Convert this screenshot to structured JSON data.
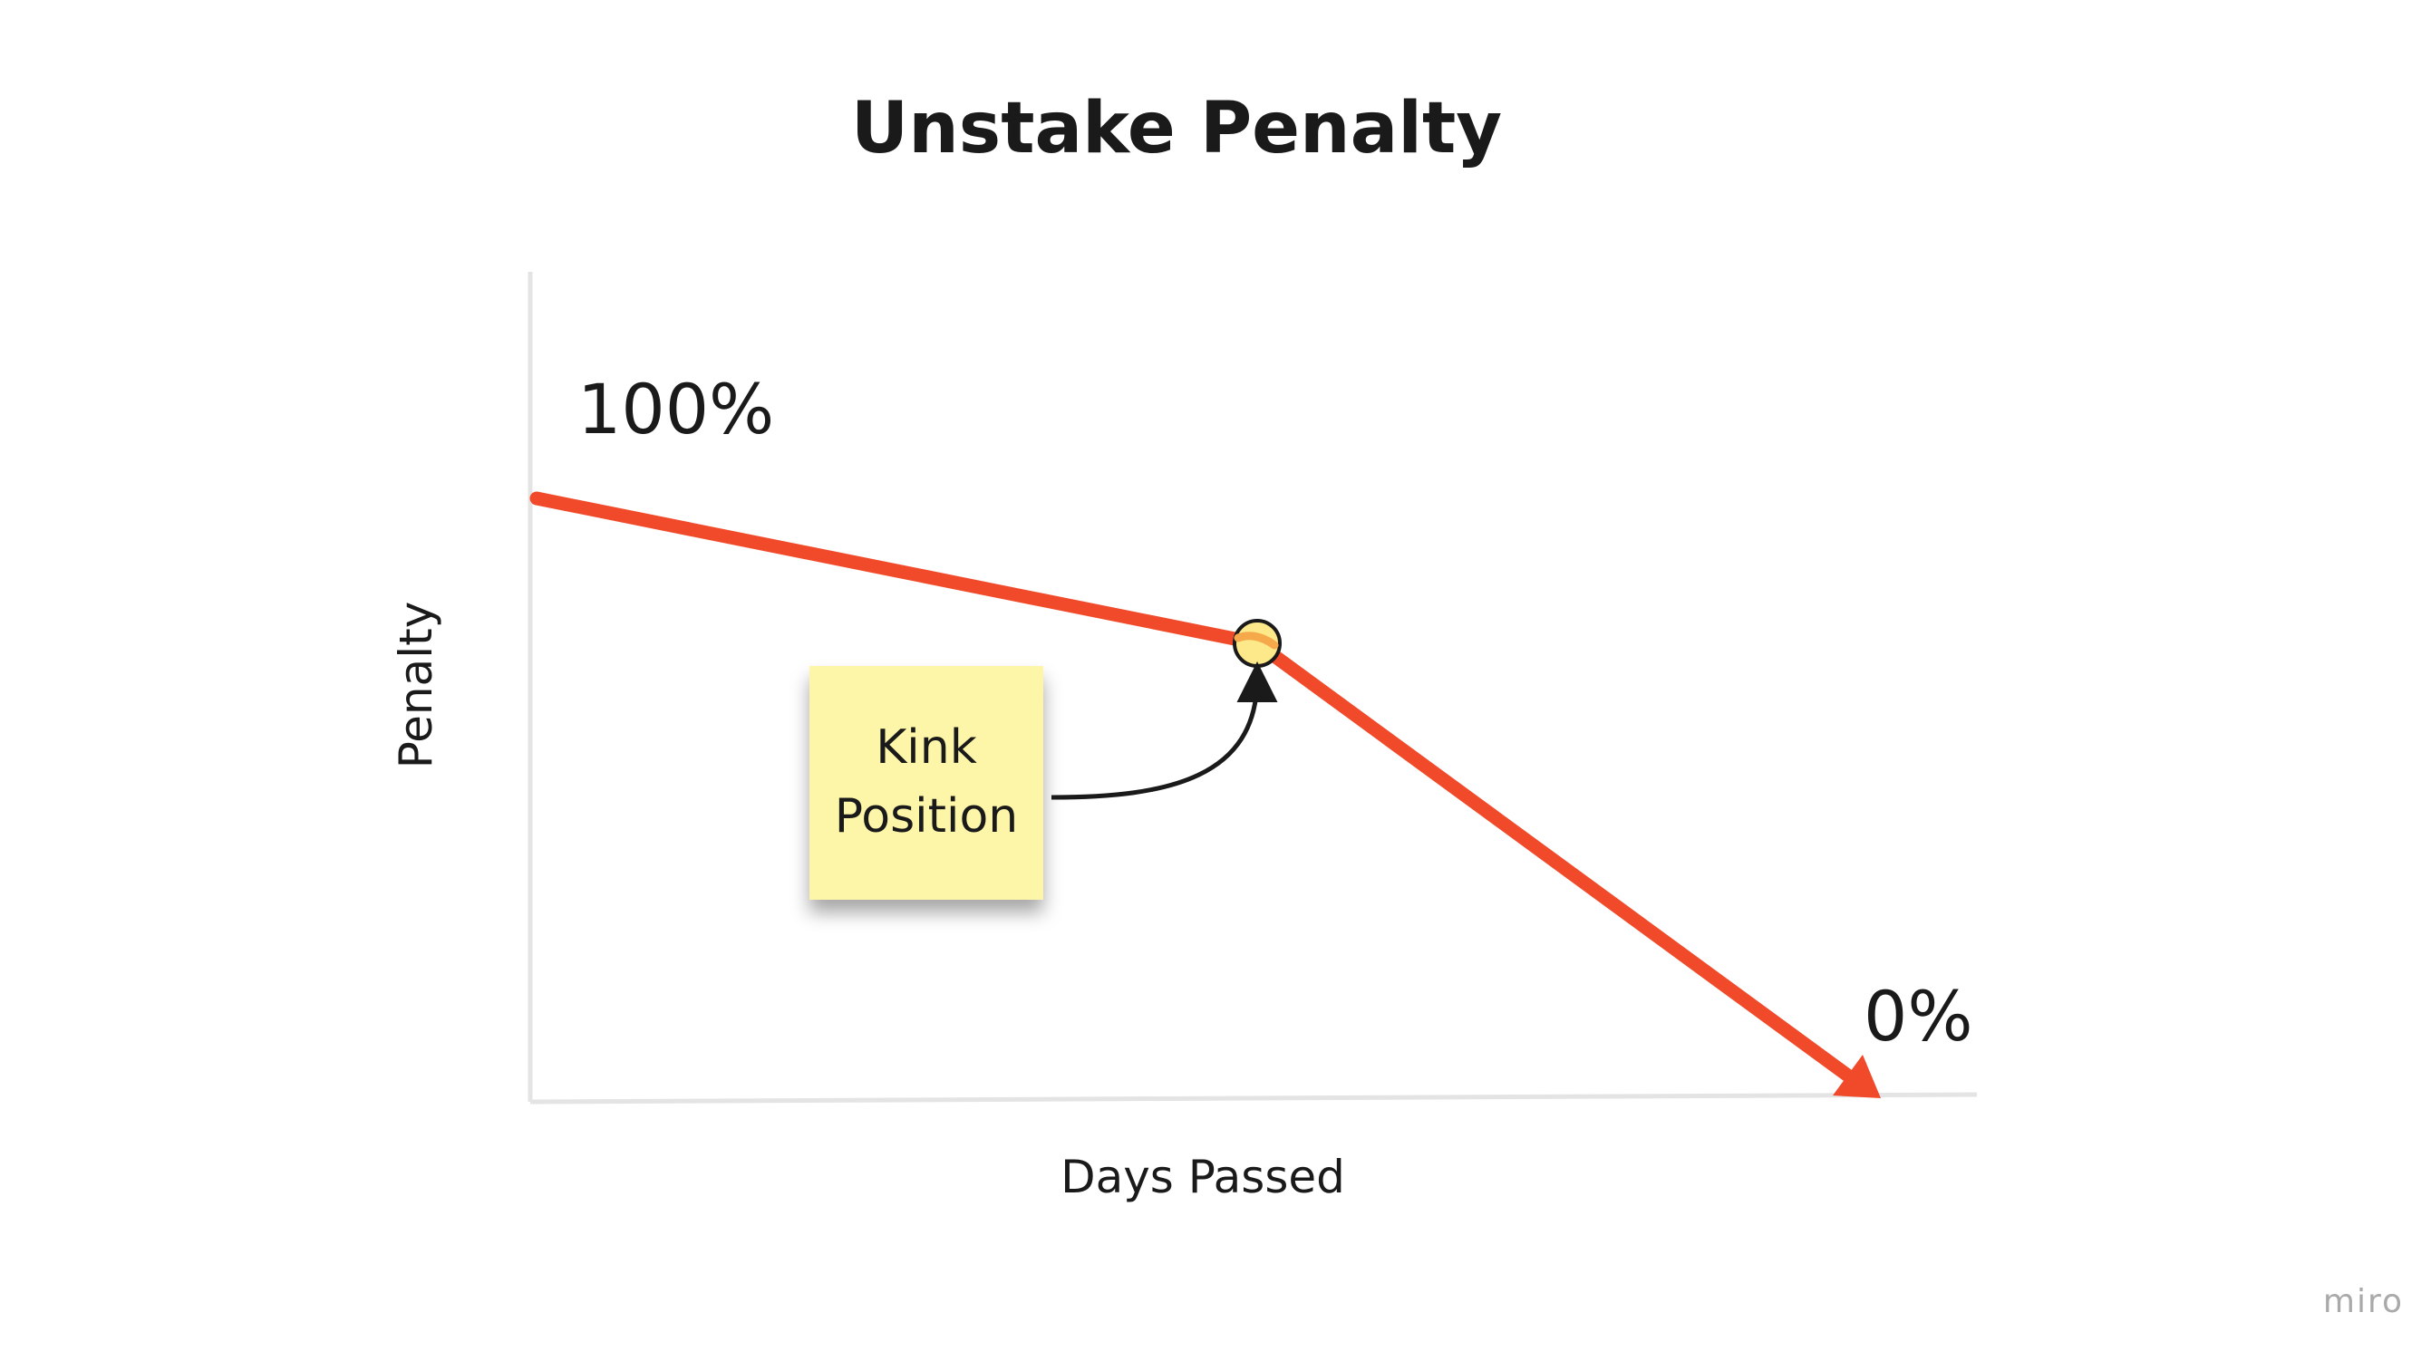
{
  "diagram": {
    "title": "Unstake Penalty",
    "y_axis_label": "Penalty",
    "x_axis_label": "Days Passed",
    "start_label": "100%",
    "end_label": "0%",
    "sticky_note": {
      "line1": "Kink",
      "line2": "Position",
      "color": "#fdf5a8"
    },
    "line_color": "#f04a2a",
    "kink_marker_color": "#fde98a",
    "watermark": "miro"
  }
}
